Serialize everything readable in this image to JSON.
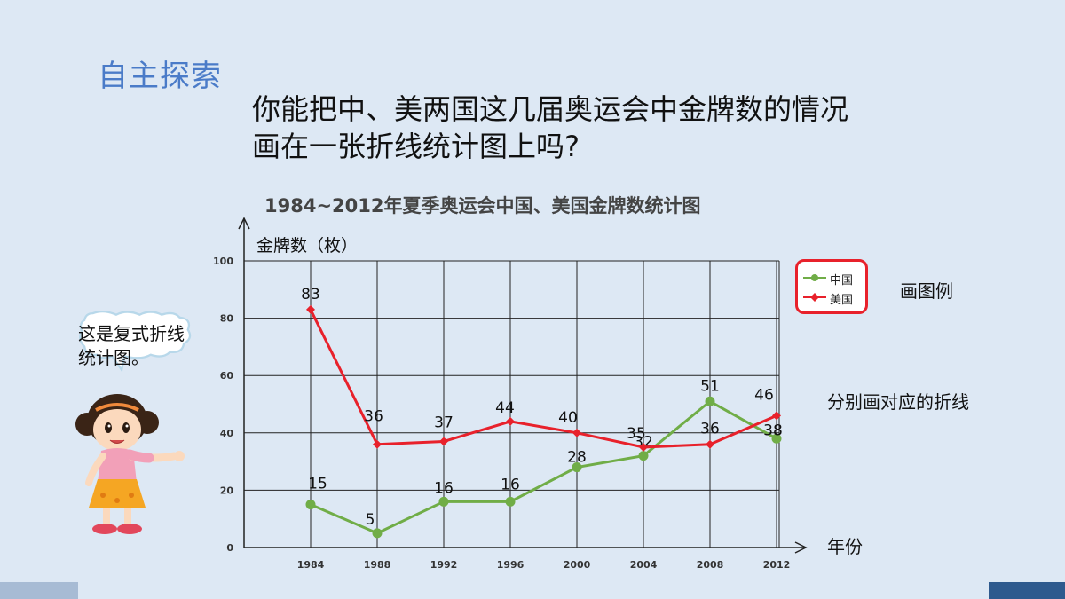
{
  "header": {
    "section_title": "自主探索",
    "question_line1": "你能把中、美两国这几届奥运会中金牌数的情况",
    "question_line2": "画在一张折线统计图上吗?"
  },
  "notes": {
    "legend_note": "画图例",
    "lines_note": "分别画对应的折线"
  },
  "speech_bubble": {
    "line1": "这是复式折线",
    "line2": "统计图。"
  },
  "colors": {
    "china": "#70ad47",
    "usa": "#e8212b",
    "accent": "#4a7bc8"
  },
  "chart_data": {
    "type": "line",
    "title": "1984~2012年夏季奥运会中国、美国金牌数统计图",
    "ylabel": "金牌数（枚）",
    "xlabel": "年份",
    "ylim": [
      0,
      100
    ],
    "yticks": [
      0,
      20,
      40,
      60,
      80,
      100
    ],
    "grid": true,
    "legend": "right",
    "categories": [
      "1984",
      "1988",
      "1992",
      "1996",
      "2000",
      "2004",
      "2008",
      "2012"
    ],
    "series": [
      {
        "name": "中国",
        "values": [
          15,
          5,
          16,
          16,
          28,
          32,
          51,
          38
        ]
      },
      {
        "name": "美国",
        "values": [
          83,
          36,
          37,
          44,
          40,
          35,
          36,
          46
        ]
      }
    ]
  }
}
